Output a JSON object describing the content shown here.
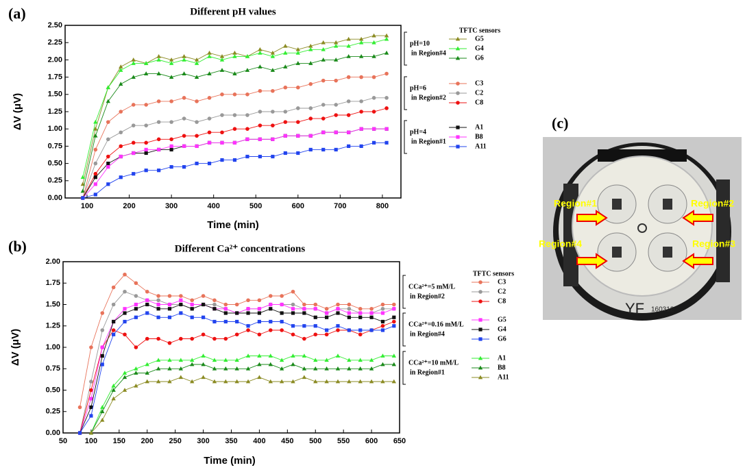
{
  "chart_data": [
    {
      "type": "line",
      "panel_label": "(a)",
      "title": "Different pH values",
      "x_label": "Time (min)",
      "y_label": "ΔV (μV)",
      "legend_title": "TFTC sensors",
      "xlim": [
        48,
        844
      ],
      "xticks": [
        100,
        200,
        300,
        400,
        500,
        600,
        700,
        800
      ],
      "ylim": [
        0,
        2.5
      ],
      "yticks": [
        {
          "value": 0,
          "label": "0.00"
        },
        {
          "value": 0.25,
          "label": "0.25"
        },
        {
          "value": 0.5,
          "label": "0.50"
        },
        {
          "value": 0.75,
          "label": "0.75"
        },
        {
          "value": 1,
          "label": "1.00"
        },
        {
          "value": 1.25,
          "label": "1.25"
        },
        {
          "value": 1.5,
          "label": "1.50"
        },
        {
          "value": 1.75,
          "label": "1.75"
        },
        {
          "value": 2,
          "label": "2.00"
        },
        {
          "value": 2.25,
          "label": "2.25"
        },
        {
          "value": 2.5,
          "label": "2.50"
        }
      ],
      "annotations": [
        {
          "lines": [
            "pH=10",
            "in Region#4"
          ]
        },
        {
          "lines": [
            "pH=6",
            "in Region#2"
          ]
        },
        {
          "lines": [
            "pH=4",
            "in Region#1"
          ]
        }
      ],
      "x": [
        90,
        120,
        150,
        180,
        210,
        240,
        270,
        300,
        330,
        360,
        390,
        420,
        450,
        480,
        510,
        540,
        570,
        600,
        630,
        660,
        690,
        720,
        750,
        780,
        810
      ],
      "series": [
        {
          "name": "G5",
          "color": "#8b8b23",
          "marker": "triangle",
          "values": [
            0.2,
            1.0,
            1.6,
            1.9,
            2.0,
            1.95,
            2.05,
            2.0,
            2.05,
            2.0,
            2.1,
            2.05,
            2.1,
            2.05,
            2.15,
            2.1,
            2.2,
            2.15,
            2.2,
            2.25,
            2.25,
            2.3,
            2.3,
            2.35,
            2.35
          ]
        },
        {
          "name": "G4",
          "color": "#33ee33",
          "marker": "triangle",
          "values": [
            0.3,
            1.1,
            1.6,
            1.85,
            1.95,
            1.95,
            2.0,
            1.95,
            2.0,
            1.95,
            2.05,
            2.0,
            2.05,
            2.05,
            2.1,
            2.05,
            2.1,
            2.1,
            2.15,
            2.15,
            2.2,
            2.2,
            2.25,
            2.25,
            2.3
          ]
        },
        {
          "name": "G6",
          "color": "#1a8a1a",
          "marker": "triangle",
          "values": [
            0.1,
            0.9,
            1.4,
            1.65,
            1.75,
            1.8,
            1.8,
            1.75,
            1.8,
            1.75,
            1.8,
            1.85,
            1.8,
            1.85,
            1.9,
            1.85,
            1.9,
            1.95,
            1.95,
            2.0,
            2.0,
            2.05,
            2.05,
            2.05,
            2.1
          ]
        },
        {
          "name": "C3",
          "color": "#e8735a",
          "marker": "circle",
          "values": [
            0,
            0.7,
            1.1,
            1.25,
            1.35,
            1.35,
            1.4,
            1.4,
            1.45,
            1.4,
            1.45,
            1.5,
            1.5,
            1.5,
            1.55,
            1.55,
            1.6,
            1.6,
            1.65,
            1.7,
            1.7,
            1.75,
            1.75,
            1.75,
            1.8
          ]
        },
        {
          "name": "C2",
          "color": "#999999",
          "marker": "circle",
          "values": [
            0,
            0.5,
            0.85,
            0.95,
            1.05,
            1.05,
            1.1,
            1.1,
            1.15,
            1.1,
            1.15,
            1.2,
            1.2,
            1.2,
            1.25,
            1.25,
            1.25,
            1.3,
            1.3,
            1.35,
            1.35,
            1.4,
            1.4,
            1.45,
            1.45
          ]
        },
        {
          "name": "C8",
          "color": "#ee1111",
          "marker": "circle",
          "values": [
            0,
            0.35,
            0.6,
            0.75,
            0.8,
            0.8,
            0.85,
            0.85,
            0.9,
            0.9,
            0.95,
            0.95,
            1.0,
            1.0,
            1.05,
            1.05,
            1.1,
            1.1,
            1.15,
            1.15,
            1.2,
            1.2,
            1.25,
            1.25,
            1.3
          ]
        },
        {
          "name": "A1",
          "color": "#111111",
          "marker": "square",
          "values": [
            0,
            0.3,
            0.5,
            0.6,
            0.65,
            0.65,
            0.7,
            0.7,
            0.75,
            0.75,
            0.8,
            0.8,
            0.8,
            0.85,
            0.85,
            0.85,
            0.9,
            0.9,
            0.9,
            0.95,
            0.95,
            0.95,
            1.0,
            1.0,
            1.0
          ]
        },
        {
          "name": "B8",
          "color": "#ff33ff",
          "marker": "square",
          "values": [
            0,
            0.2,
            0.45,
            0.6,
            0.65,
            0.7,
            0.7,
            0.75,
            0.75,
            0.75,
            0.8,
            0.8,
            0.8,
            0.85,
            0.85,
            0.85,
            0.9,
            0.9,
            0.9,
            0.95,
            0.95,
            0.95,
            1.0,
            1.0,
            1.0
          ]
        },
        {
          "name": "A11",
          "color": "#2244ee",
          "marker": "square",
          "values": [
            0,
            0.05,
            0.2,
            0.3,
            0.35,
            0.4,
            0.4,
            0.45,
            0.45,
            0.5,
            0.5,
            0.55,
            0.55,
            0.6,
            0.6,
            0.6,
            0.65,
            0.65,
            0.7,
            0.7,
            0.7,
            0.75,
            0.75,
            0.8,
            0.8
          ]
        }
      ]
    },
    {
      "type": "line",
      "panel_label": "(b)",
      "title": "Different Ca²⁺ concentrations",
      "x_label": "Time (min)",
      "y_label": "ΔV (μV)",
      "legend_title": "TFTC sensors",
      "xlim": [
        50,
        650
      ],
      "xticks": [
        50,
        100,
        150,
        200,
        250,
        300,
        350,
        400,
        450,
        500,
        550,
        600,
        650
      ],
      "ylim": [
        0,
        2
      ],
      "yticks": [
        {
          "value": 0,
          "label": "0.00"
        },
        {
          "value": 0.25,
          "label": "0.25"
        },
        {
          "value": 0.5,
          "label": "0.50"
        },
        {
          "value": 0.75,
          "label": "0.75"
        },
        {
          "value": 1,
          "label": "1.00"
        },
        {
          "value": 1.25,
          "label": "1.25"
        },
        {
          "value": 1.5,
          "label": "1.50"
        },
        {
          "value": 1.75,
          "label": "1.75"
        },
        {
          "value": 2,
          "label": "2.00"
        }
      ],
      "annotations": [
        {
          "lines": [
            "CCa²⁺=5 mM/L",
            "in Region#2"
          ]
        },
        {
          "lines": [
            "CCa²⁺=0.16 mM/L",
            "in Region#4"
          ]
        },
        {
          "lines": [
            "CCa²⁺=10 mM/L",
            "in Region#1"
          ]
        }
      ],
      "x": [
        80,
        100,
        120,
        140,
        160,
        180,
        200,
        220,
        240,
        260,
        280,
        300,
        320,
        340,
        360,
        380,
        400,
        420,
        440,
        460,
        480,
        500,
        520,
        540,
        560,
        580,
        600,
        620,
        640
      ],
      "series": [
        {
          "name": "C3",
          "color": "#e8735a",
          "marker": "circle",
          "values": [
            0.3,
            1.0,
            1.4,
            1.7,
            1.85,
            1.75,
            1.65,
            1.6,
            1.6,
            1.6,
            1.55,
            1.6,
            1.55,
            1.5,
            1.5,
            1.55,
            1.55,
            1.6,
            1.6,
            1.65,
            1.5,
            1.5,
            1.45,
            1.5,
            1.5,
            1.45,
            1.45,
            1.5,
            1.5
          ]
        },
        {
          "name": "C2",
          "color": "#999999",
          "marker": "circle",
          "values": [
            0,
            0.6,
            1.2,
            1.5,
            1.65,
            1.6,
            1.55,
            1.55,
            1.5,
            1.5,
            1.45,
            1.5,
            1.5,
            1.45,
            1.4,
            1.45,
            1.45,
            1.5,
            1.5,
            1.5,
            1.45,
            1.45,
            1.4,
            1.45,
            1.45,
            1.4,
            1.4,
            1.45,
            1.45
          ]
        },
        {
          "name": "C8",
          "color": "#ee1111",
          "marker": "circle",
          "values": [
            0,
            0.5,
            1.0,
            1.2,
            1.15,
            1.0,
            1.1,
            1.1,
            1.05,
            1.1,
            1.1,
            1.15,
            1.1,
            1.1,
            1.15,
            1.2,
            1.15,
            1.2,
            1.2,
            1.15,
            1.1,
            1.15,
            1.15,
            1.2,
            1.2,
            1.15,
            1.2,
            1.25,
            1.3
          ]
        },
        {
          "name": "G5",
          "color": "#ff33ff",
          "marker": "square",
          "values": [
            0,
            0.4,
            1.0,
            1.3,
            1.45,
            1.5,
            1.55,
            1.5,
            1.5,
            1.55,
            1.5,
            1.5,
            1.45,
            1.45,
            1.4,
            1.45,
            1.45,
            1.5,
            1.5,
            1.45,
            1.45,
            1.45,
            1.4,
            1.45,
            1.4,
            1.4,
            1.4,
            1.4,
            1.45
          ]
        },
        {
          "name": "G4",
          "color": "#111111",
          "marker": "square",
          "values": [
            0,
            0.3,
            0.9,
            1.3,
            1.4,
            1.45,
            1.5,
            1.45,
            1.45,
            1.5,
            1.45,
            1.5,
            1.45,
            1.4,
            1.4,
            1.4,
            1.4,
            1.45,
            1.4,
            1.4,
            1.4,
            1.35,
            1.35,
            1.4,
            1.35,
            1.35,
            1.35,
            1.3,
            1.35
          ]
        },
        {
          "name": "G6",
          "color": "#2244ee",
          "marker": "square",
          "values": [
            0,
            0.2,
            0.8,
            1.15,
            1.3,
            1.35,
            1.4,
            1.35,
            1.35,
            1.4,
            1.35,
            1.35,
            1.3,
            1.3,
            1.3,
            1.25,
            1.3,
            1.3,
            1.3,
            1.25,
            1.25,
            1.25,
            1.2,
            1.25,
            1.2,
            1.2,
            1.2,
            1.2,
            1.25
          ]
        },
        {
          "name": "A1",
          "color": "#33ee33",
          "marker": "triangle",
          "values": [
            null,
            0,
            0.3,
            0.55,
            0.7,
            0.75,
            0.8,
            0.85,
            0.85,
            0.85,
            0.85,
            0.9,
            0.85,
            0.85,
            0.85,
            0.9,
            0.9,
            0.9,
            0.85,
            0.9,
            0.9,
            0.85,
            0.85,
            0.9,
            0.85,
            0.85,
            0.85,
            0.9,
            0.9
          ]
        },
        {
          "name": "B8",
          "color": "#1a8a1a",
          "marker": "triangle",
          "values": [
            null,
            0,
            0.25,
            0.5,
            0.65,
            0.7,
            0.7,
            0.75,
            0.75,
            0.75,
            0.8,
            0.8,
            0.75,
            0.75,
            0.75,
            0.75,
            0.8,
            0.8,
            0.75,
            0.8,
            0.75,
            0.75,
            0.75,
            0.75,
            0.75,
            0.75,
            0.75,
            0.8,
            0.8
          ]
        },
        {
          "name": "A11",
          "color": "#8b8b23",
          "marker": "triangle",
          "values": [
            null,
            0,
            0.15,
            0.4,
            0.5,
            0.55,
            0.6,
            0.6,
            0.6,
            0.65,
            0.6,
            0.65,
            0.6,
            0.6,
            0.6,
            0.6,
            0.65,
            0.6,
            0.6,
            0.6,
            0.65,
            0.6,
            0.6,
            0.6,
            0.6,
            0.6,
            0.6,
            0.6,
            0.6
          ]
        }
      ]
    }
  ],
  "panel_c": {
    "panel_label": "(c)",
    "regions": [
      "Region#1",
      "Region#2",
      "Region#4",
      "Region#3"
    ],
    "plate_mark": "YF",
    "plate_code": "160312"
  }
}
